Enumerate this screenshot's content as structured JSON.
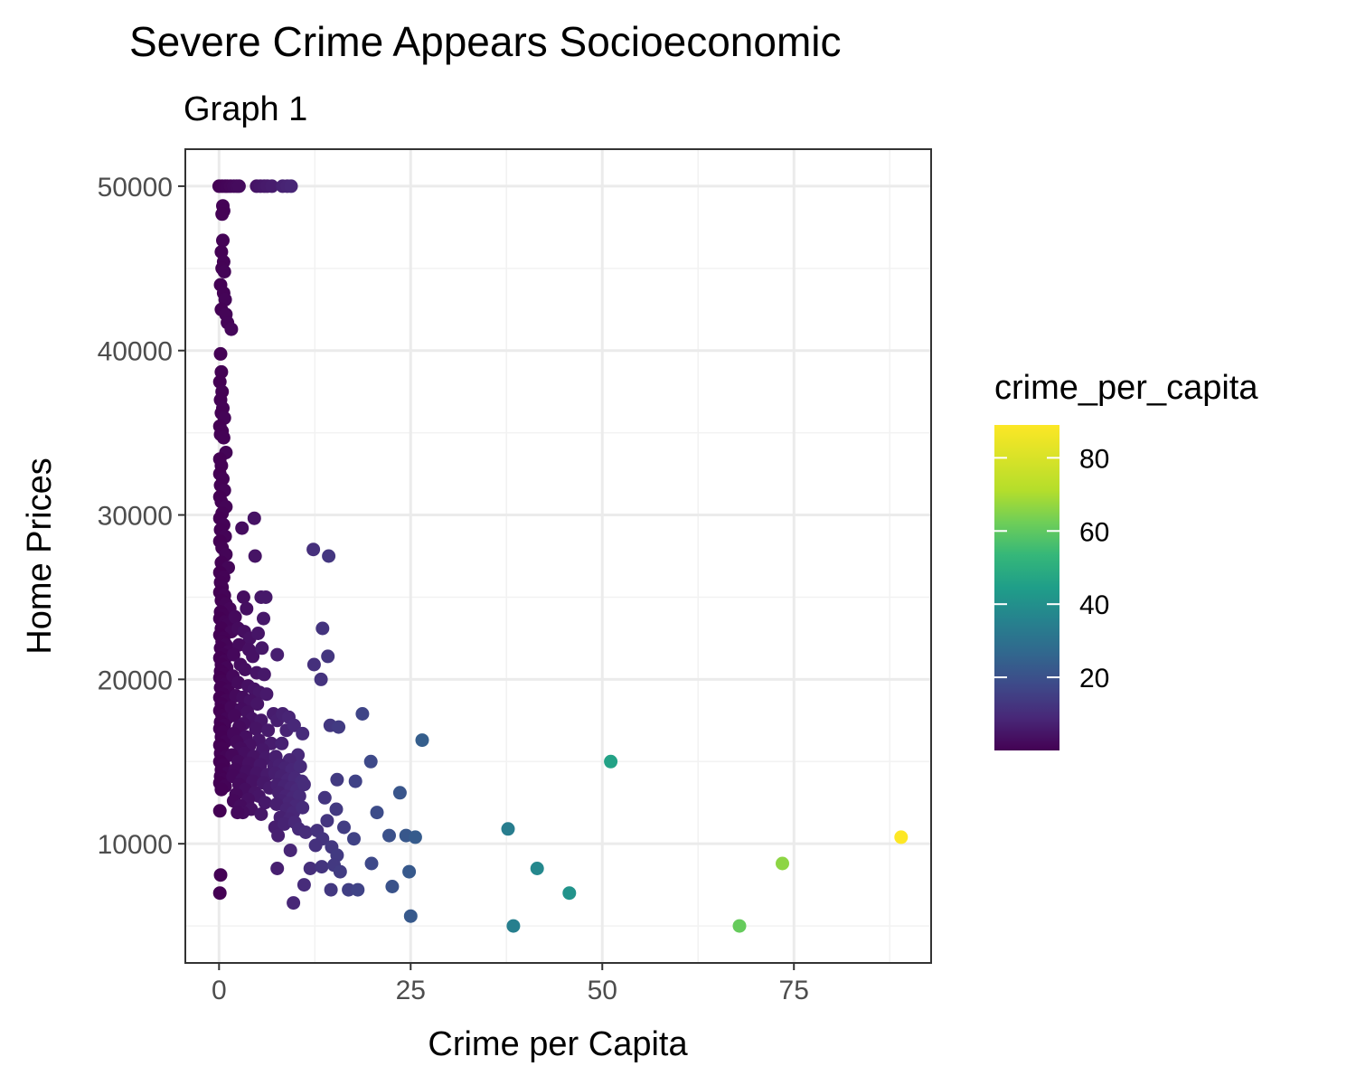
{
  "chart_data": {
    "type": "scatter",
    "title": "Severe Crime Appears Socioeconomic",
    "subtitle": "Graph 1",
    "xlabel": "Crime per Capita",
    "ylabel": "Home Prices",
    "xlim": [
      -4.4,
      92.9
    ],
    "ylim": [
      2750,
      52250
    ],
    "x_ticks": [
      0,
      25,
      50,
      75
    ],
    "x_tick_labels": [
      "0",
      "25",
      "50",
      "75"
    ],
    "y_ticks": [
      10000,
      20000,
      30000,
      40000,
      50000
    ],
    "y_tick_labels": [
      "10000",
      "20000",
      "30000",
      "40000",
      "50000"
    ],
    "grid": true,
    "color_variable": "crime_per_capita",
    "colorscale": "viridis",
    "color_range": [
      0.006,
      88.98
    ],
    "legend": {
      "title": "crime_per_capita",
      "position": "right",
      "ticks": [
        20,
        40,
        60,
        80
      ],
      "tick_labels": [
        "20",
        "40",
        "60",
        "80"
      ]
    },
    "points": [
      [
        0.01,
        50000
      ],
      [
        0.4,
        50000
      ],
      [
        0.8,
        50000
      ],
      [
        1.1,
        50000
      ],
      [
        1.5,
        50000
      ],
      [
        1.9,
        50000
      ],
      [
        2.3,
        50000
      ],
      [
        2.6,
        50000
      ],
      [
        4.9,
        50000
      ],
      [
        5.4,
        50000
      ],
      [
        5.9,
        50000
      ],
      [
        6.3,
        50000
      ],
      [
        6.9,
        50000
      ],
      [
        8.3,
        50000
      ],
      [
        8.9,
        50000
      ],
      [
        9.4,
        50000
      ],
      [
        0.5,
        48800
      ],
      [
        0.6,
        48500
      ],
      [
        0.4,
        48300
      ],
      [
        0.5,
        46700
      ],
      [
        0.3,
        46000
      ],
      [
        0.6,
        45400
      ],
      [
        0.4,
        45000
      ],
      [
        0.7,
        44800
      ],
      [
        0.2,
        44000
      ],
      [
        0.6,
        43500
      ],
      [
        0.8,
        43100
      ],
      [
        0.3,
        42500
      ],
      [
        0.9,
        42200
      ],
      [
        1.1,
        41700
      ],
      [
        1.6,
        41300
      ],
      [
        0.2,
        39800
      ],
      [
        0.3,
        38700
      ],
      [
        0.1,
        38100
      ],
      [
        0.4,
        37500
      ],
      [
        0.2,
        37000
      ],
      [
        0.5,
        36500
      ],
      [
        0.3,
        36200
      ],
      [
        0.7,
        35900
      ],
      [
        0.1,
        35400
      ],
      [
        0.4,
        35100
      ],
      [
        0.2,
        34900
      ],
      [
        0.6,
        34700
      ],
      [
        0.9,
        33800
      ],
      [
        0.1,
        33400
      ],
      [
        0.3,
        33000
      ],
      [
        0.1,
        32500
      ],
      [
        0.5,
        32200
      ],
      [
        0.2,
        31800
      ],
      [
        0.7,
        31500
      ],
      [
        0.1,
        31100
      ],
      [
        0.3,
        30800
      ],
      [
        0.9,
        30500
      ],
      [
        0.4,
        30100
      ],
      [
        0.1,
        29800
      ],
      [
        0.6,
        29400
      ],
      [
        0.2,
        29100
      ],
      [
        0.8,
        28700
      ],
      [
        0.1,
        28400
      ],
      [
        0.4,
        28000
      ],
      [
        0.9,
        27600
      ],
      [
        0.3,
        27100
      ],
      [
        1.2,
        26800
      ],
      [
        0.1,
        26500
      ],
      [
        0.6,
        26200
      ],
      [
        0.2,
        25900
      ],
      [
        0.4,
        25600
      ],
      [
        0.1,
        25300
      ],
      [
        0.7,
        25100
      ],
      [
        0.3,
        24800
      ],
      [
        0.9,
        24600
      ],
      [
        1.4,
        24300
      ],
      [
        0.2,
        24100
      ],
      [
        0.5,
        23900
      ],
      [
        0.1,
        23700
      ],
      [
        0.8,
        23500
      ],
      [
        1.1,
        23300
      ],
      [
        0.3,
        23100
      ],
      [
        1.6,
        22900
      ],
      [
        0.1,
        22700
      ],
      [
        0.6,
        22500
      ],
      [
        0.4,
        22300
      ],
      [
        0.9,
        22100
      ],
      [
        0.2,
        21900
      ],
      [
        1.3,
        21700
      ],
      [
        0.5,
        21500
      ],
      [
        0.1,
        21300
      ],
      [
        0.7,
        21100
      ],
      [
        0.3,
        20900
      ],
      [
        1.0,
        20700
      ],
      [
        0.2,
        20500
      ],
      [
        0.6,
        20300
      ],
      [
        0.1,
        20100
      ],
      [
        0.4,
        19900
      ],
      [
        0.8,
        19700
      ],
      [
        0.2,
        19500
      ],
      [
        1.2,
        19300
      ],
      [
        0.5,
        19100
      ],
      [
        0.1,
        18900
      ],
      [
        0.9,
        18700
      ],
      [
        0.3,
        18500
      ],
      [
        0.6,
        18300
      ],
      [
        0.1,
        18100
      ],
      [
        0.4,
        17800
      ],
      [
        1.0,
        17600
      ],
      [
        0.2,
        17400
      ],
      [
        0.7,
        17200
      ],
      [
        0.1,
        17000
      ],
      [
        0.5,
        16800
      ],
      [
        0.3,
        16500
      ],
      [
        0.8,
        16200
      ],
      [
        0.1,
        16000
      ],
      [
        0.4,
        15800
      ],
      [
        0.2,
        15500
      ],
      [
        0.9,
        15300
      ],
      [
        0.1,
        15000
      ],
      [
        0.6,
        14800
      ],
      [
        0.3,
        14500
      ],
      [
        1.1,
        14300
      ],
      [
        0.2,
        14100
      ],
      [
        0.5,
        13900
      ],
      [
        0.1,
        13700
      ],
      [
        0.8,
        13500
      ],
      [
        0.3,
        13300
      ],
      [
        0.1,
        12000
      ],
      [
        0.2,
        8100
      ],
      [
        0.1,
        7000
      ],
      [
        3.0,
        29200
      ],
      [
        4.6,
        29800
      ],
      [
        4.7,
        27500
      ],
      [
        3.2,
        25000
      ],
      [
        5.5,
        25000
      ],
      [
        6.1,
        25000
      ],
      [
        3.6,
        24300
      ],
      [
        5.8,
        23700
      ],
      [
        2.1,
        23800
      ],
      [
        2.5,
        23100
      ],
      [
        3.3,
        22900
      ],
      [
        4.0,
        22500
      ],
      [
        5.1,
        22800
      ],
      [
        2.6,
        22100
      ],
      [
        3.9,
        21800
      ],
      [
        1.9,
        21500
      ],
      [
        4.4,
        21400
      ],
      [
        5.6,
        21900
      ],
      [
        2.8,
        20900
      ],
      [
        3.4,
        20600
      ],
      [
        4.9,
        20400
      ],
      [
        5.9,
        20300
      ],
      [
        1.8,
        20200
      ],
      [
        2.5,
        19800
      ],
      [
        3.8,
        19600
      ],
      [
        4.6,
        19400
      ],
      [
        5.3,
        19200
      ],
      [
        2.2,
        19000
      ],
      [
        3.1,
        18900
      ],
      [
        6.2,
        19100
      ],
      [
        4.1,
        18700
      ],
      [
        5.0,
        18500
      ],
      [
        1.6,
        18300
      ],
      [
        2.9,
        18200
      ],
      [
        3.7,
        18000
      ],
      [
        2.0,
        17800
      ],
      [
        4.3,
        17600
      ],
      [
        5.5,
        17500
      ],
      [
        3.2,
        17300
      ],
      [
        2.6,
        17100
      ],
      [
        4.8,
        17000
      ],
      [
        6.4,
        16900
      ],
      [
        1.9,
        16700
      ],
      [
        3.5,
        16500
      ],
      [
        5.2,
        16300
      ],
      [
        2.3,
        16200
      ],
      [
        6.8,
        16100
      ],
      [
        4.0,
        16000
      ],
      [
        2.8,
        15800
      ],
      [
        5.7,
        15700
      ],
      [
        3.3,
        15500
      ],
      [
        1.7,
        15400
      ],
      [
        4.5,
        15300
      ],
      [
        6.1,
        15200
      ],
      [
        2.5,
        15000
      ],
      [
        3.9,
        14900
      ],
      [
        5.4,
        14800
      ],
      [
        7.2,
        14700
      ],
      [
        2.1,
        14500
      ],
      [
        3.6,
        14400
      ],
      [
        4.9,
        14300
      ],
      [
        6.3,
        14200
      ],
      [
        1.8,
        14100
      ],
      [
        3.0,
        13900
      ],
      [
        4.4,
        13800
      ],
      [
        5.8,
        13700
      ],
      [
        2.6,
        13600
      ],
      [
        6.6,
        13400
      ],
      [
        3.4,
        13300
      ],
      [
        4.7,
        13100
      ],
      [
        2.2,
        13000
      ],
      [
        5.2,
        12900
      ],
      [
        3.8,
        12700
      ],
      [
        1.9,
        12600
      ],
      [
        6.0,
        12500
      ],
      [
        2.8,
        12300
      ],
      [
        4.2,
        12100
      ],
      [
        3.1,
        11900
      ],
      [
        5.5,
        11800
      ],
      [
        2.4,
        11900
      ],
      [
        7.6,
        21500
      ],
      [
        7.1,
        17900
      ],
      [
        7.6,
        17500
      ],
      [
        8.3,
        17900
      ],
      [
        9.1,
        17700
      ],
      [
        8.8,
        16900
      ],
      [
        9.8,
        17200
      ],
      [
        10.9,
        16700
      ],
      [
        8.2,
        16100
      ],
      [
        10.3,
        15400
      ],
      [
        7.4,
        15300
      ],
      [
        9.2,
        15100
      ],
      [
        7.9,
        14800
      ],
      [
        8.6,
        14600
      ],
      [
        9.5,
        14500
      ],
      [
        10.6,
        14700
      ],
      [
        7.3,
        14300
      ],
      [
        8.1,
        14100
      ],
      [
        9.0,
        13900
      ],
      [
        9.9,
        14000
      ],
      [
        10.8,
        13800
      ],
      [
        7.6,
        13600
      ],
      [
        8.5,
        13500
      ],
      [
        9.4,
        13400
      ],
      [
        10.2,
        13300
      ],
      [
        11.1,
        13600
      ],
      [
        7.8,
        13100
      ],
      [
        8.7,
        12900
      ],
      [
        9.6,
        12800
      ],
      [
        10.5,
        12900
      ],
      [
        8.2,
        12600
      ],
      [
        9.1,
        12500
      ],
      [
        10.0,
        12300
      ],
      [
        7.5,
        12400
      ],
      [
        8.8,
        12100
      ],
      [
        9.7,
        11900
      ],
      [
        10.9,
        12200
      ],
      [
        8.0,
        11600
      ],
      [
        9.2,
        11500
      ],
      [
        7.3,
        11000
      ],
      [
        8.5,
        11200
      ],
      [
        9.9,
        11300
      ],
      [
        10.4,
        10900
      ],
      [
        11.3,
        10700
      ],
      [
        7.7,
        10500
      ],
      [
        9.3,
        9600
      ],
      [
        7.6,
        8500
      ],
      [
        9.7,
        6400
      ],
      [
        12.3,
        27900
      ],
      [
        14.3,
        27500
      ],
      [
        13.5,
        23100
      ],
      [
        14.2,
        21400
      ],
      [
        12.4,
        20900
      ],
      [
        13.3,
        20000
      ],
      [
        14.5,
        17200
      ],
      [
        15.6,
        17100
      ],
      [
        18.7,
        17900
      ],
      [
        15.4,
        13900
      ],
      [
        19.8,
        15000
      ],
      [
        17.8,
        13800
      ],
      [
        13.8,
        12800
      ],
      [
        15.3,
        12100
      ],
      [
        14.1,
        11400
      ],
      [
        16.3,
        11000
      ],
      [
        12.8,
        10800
      ],
      [
        13.5,
        10300
      ],
      [
        12.6,
        9900
      ],
      [
        11.9,
        8500
      ],
      [
        14.7,
        9800
      ],
      [
        15.4,
        9300
      ],
      [
        17.6,
        10300
      ],
      [
        20.6,
        11900
      ],
      [
        22.2,
        10500
      ],
      [
        23.6,
        13100
      ],
      [
        24.4,
        10500
      ],
      [
        25.6,
        10400
      ],
      [
        13.4,
        8600
      ],
      [
        15.0,
        8700
      ],
      [
        15.8,
        8300
      ],
      [
        11.1,
        7500
      ],
      [
        14.6,
        7200
      ],
      [
        16.9,
        7200
      ],
      [
        18.1,
        7200
      ],
      [
        19.9,
        8800
      ],
      [
        22.6,
        7400
      ],
      [
        24.8,
        8300
      ],
      [
        25.0,
        5600
      ],
      [
        26.5,
        16300
      ],
      [
        37.7,
        10900
      ],
      [
        41.5,
        8500
      ],
      [
        38.4,
        5000
      ],
      [
        45.7,
        7000
      ],
      [
        51.1,
        15000
      ],
      [
        67.9,
        5000
      ],
      [
        73.5,
        8800
      ],
      [
        88.98,
        10400
      ]
    ]
  }
}
